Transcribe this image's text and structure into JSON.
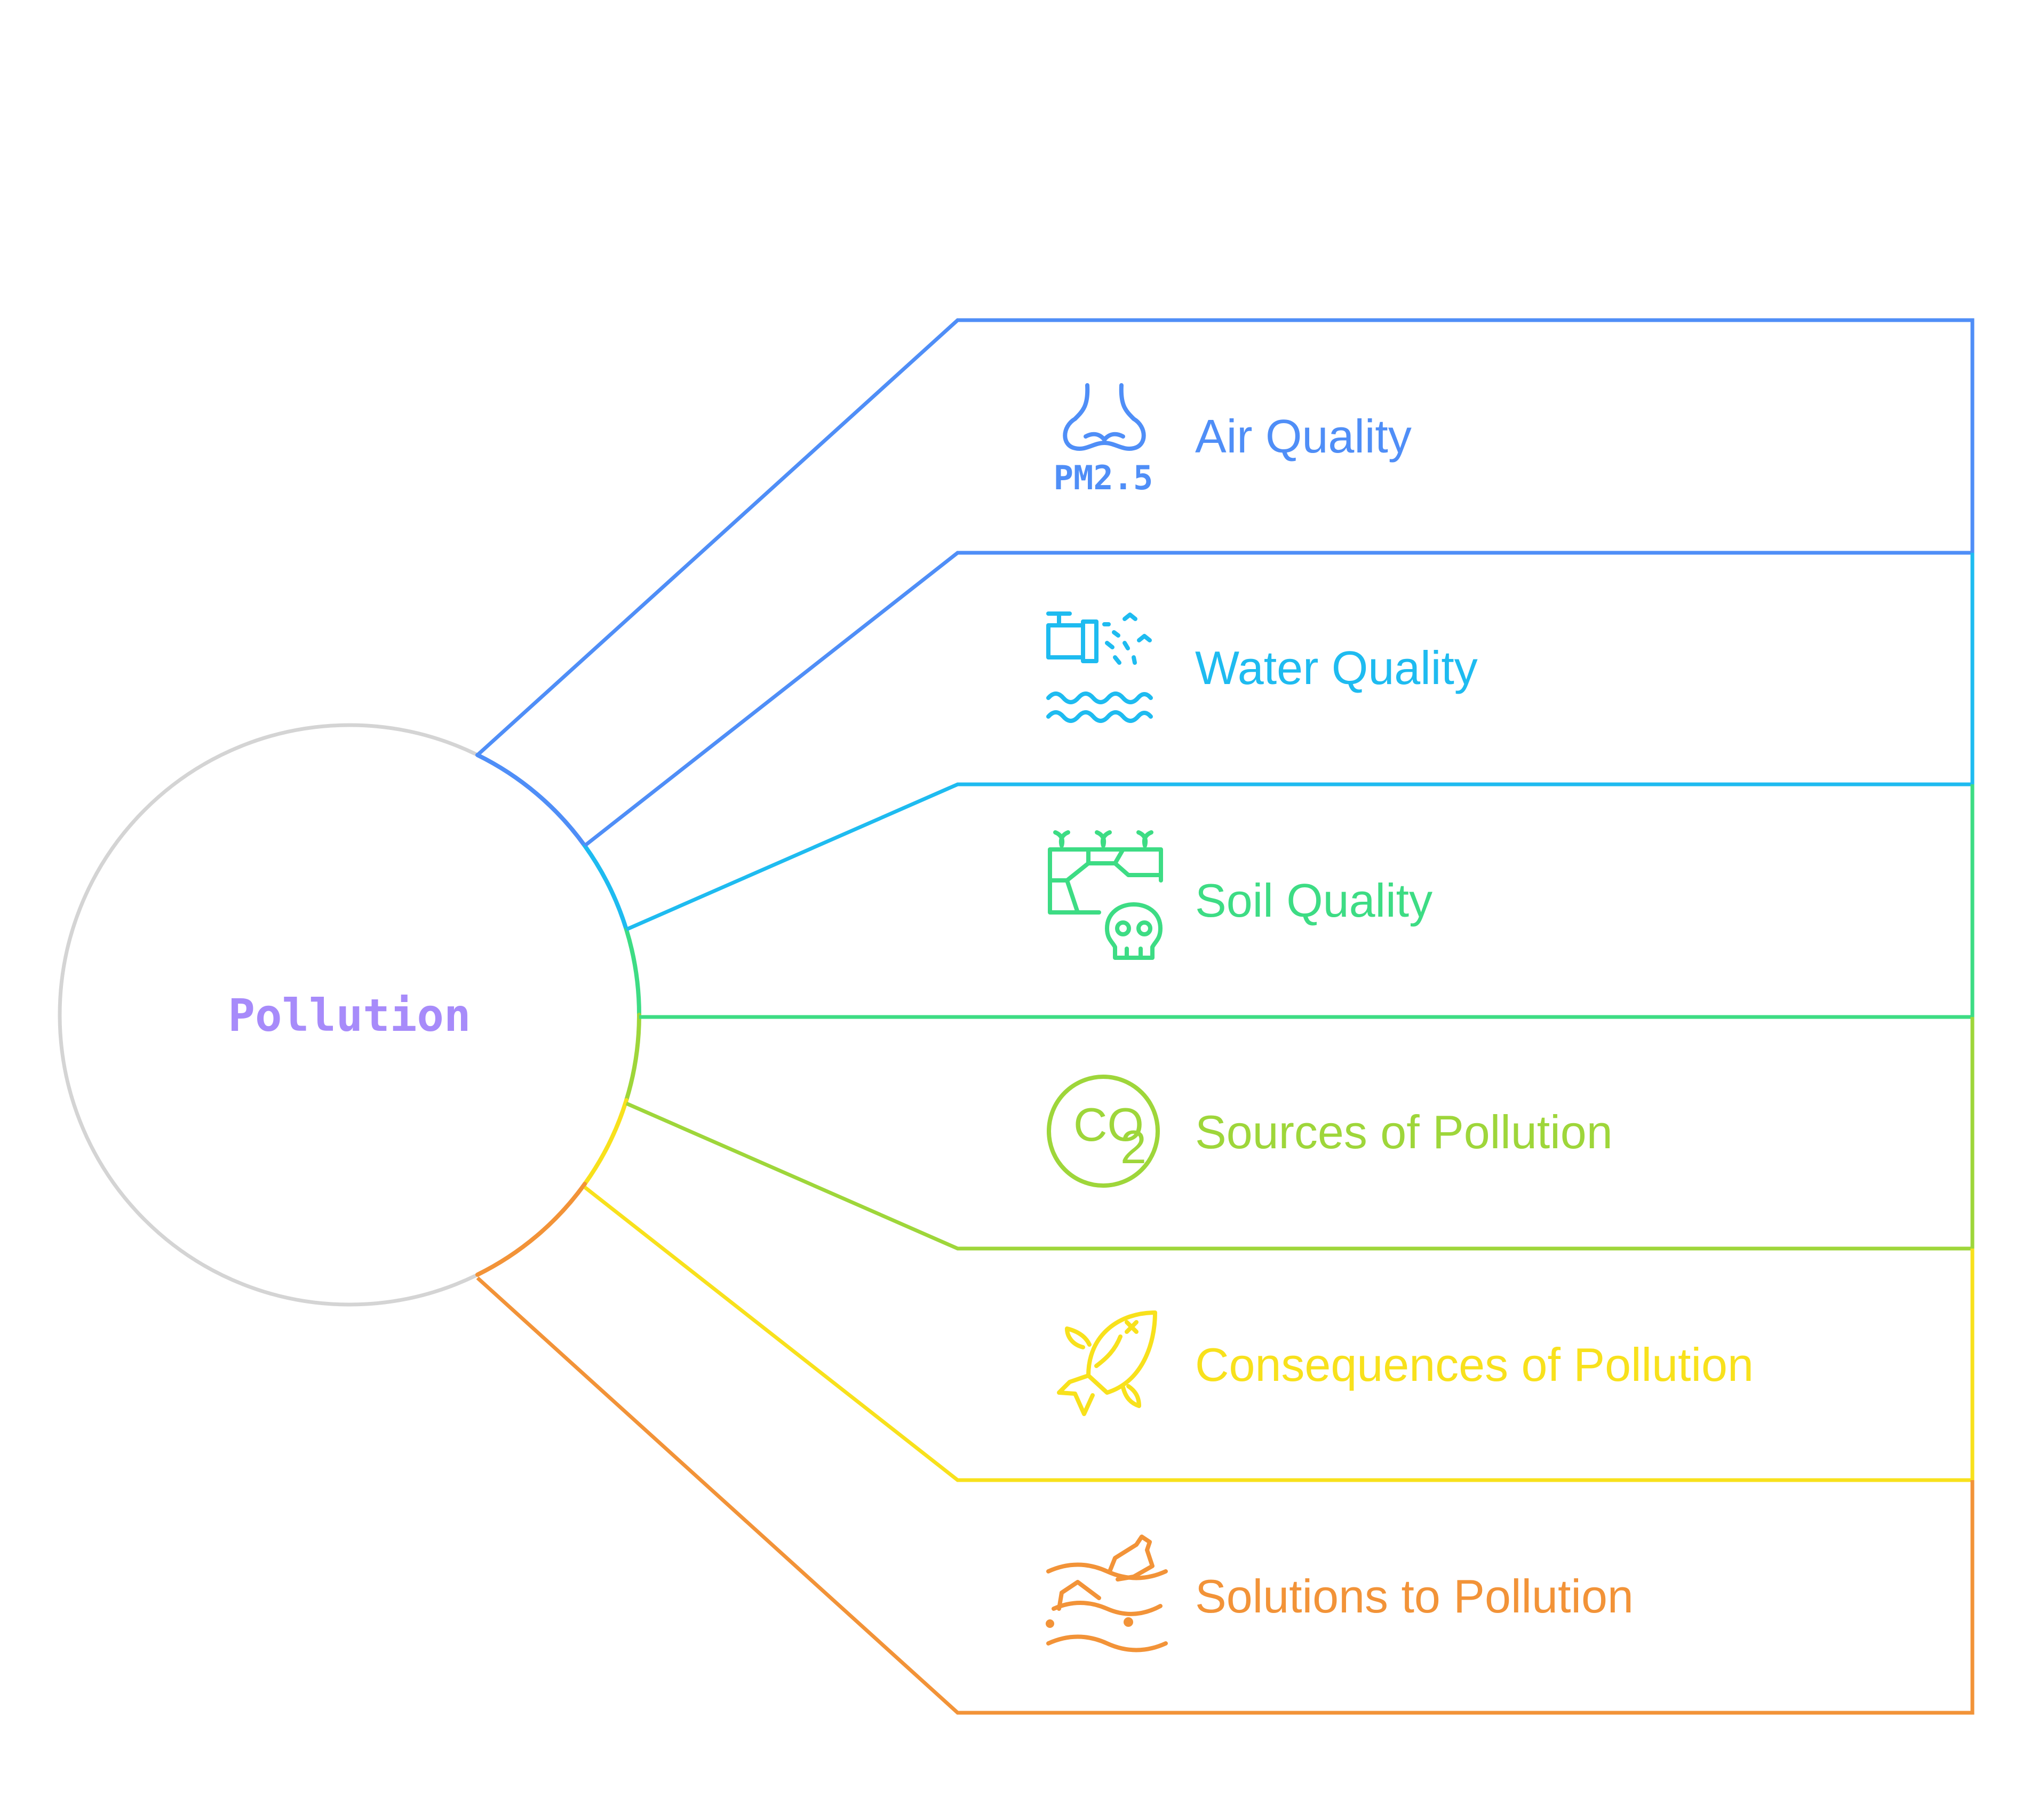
{
  "hub": {
    "label": "Pollution",
    "label_color": "#A78BFA",
    "stroke_color": "#D4D4D4"
  },
  "branches": [
    {
      "label": "Air Quality",
      "color": "#4F8EF7",
      "icon": "nose-pm25-icon",
      "icon_text": "PM2.5"
    },
    {
      "label": "Water Quality",
      "color": "#1EBBF0",
      "icon": "water-pipe-spill-icon"
    },
    {
      "label": "Soil Quality",
      "color": "#3DDC84",
      "icon": "contaminated-soil-skull-icon"
    },
    {
      "label": "Sources of Pollution",
      "color": "#9ED63A",
      "icon": "co2-icon",
      "icon_text": "CO",
      "icon_subtext": "2"
    },
    {
      "label": "Consequences of Pollution",
      "color": "#F8E11C",
      "icon": "dead-fish-icon"
    },
    {
      "label": "Solutions to Pollution",
      "color": "#F29338",
      "icon": "ocean-plastic-bottle-icon"
    }
  ]
}
